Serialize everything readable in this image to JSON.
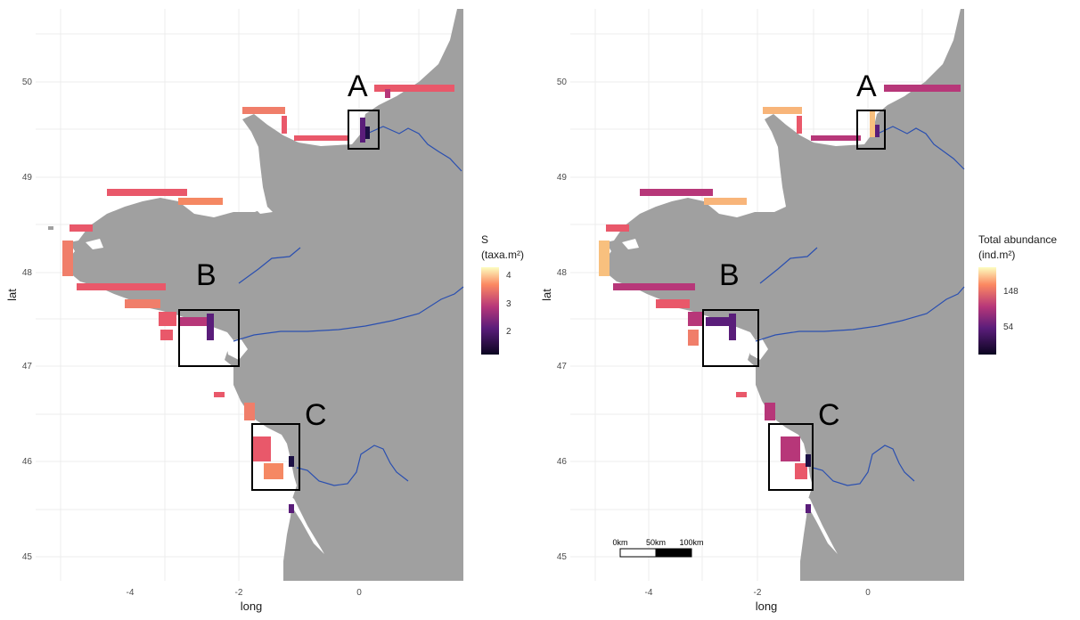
{
  "panels": [
    {
      "id": "species_richness",
      "xlabel": "long",
      "ylabel": "lat",
      "x_ticks": [
        "-4",
        "-2",
        "0"
      ],
      "y_ticks": [
        "45",
        "46",
        "47",
        "48",
        "49",
        "50"
      ],
      "legend": {
        "title_line1": "S",
        "title_line2": "(taxa.m²)",
        "ticks": [
          "4",
          "3",
          "2"
        ]
      },
      "boxes": [
        {
          "label": "A",
          "lon": [
            -0.2,
            0.35
          ],
          "lat": [
            49.3,
            49.7
          ]
        },
        {
          "label": "B",
          "lon": [
            -3.0,
            -2.0
          ],
          "lat": [
            47.0,
            47.6
          ]
        },
        {
          "label": "C",
          "lon": [
            -1.8,
            -1.05
          ],
          "lat": [
            45.7,
            46.4
          ]
        }
      ],
      "colors": {
        "land": "#a0a0a0",
        "river": "#2a4fb0",
        "low": "#0b0420",
        "mid": "#b73779",
        "high": "#fcfdbf"
      }
    },
    {
      "id": "total_abundance",
      "xlabel": "long",
      "ylabel": "lat",
      "x_ticks": [
        "-4",
        "-2",
        "0"
      ],
      "y_ticks": [
        "45",
        "46",
        "47",
        "48",
        "49",
        "50"
      ],
      "legend": {
        "title_line1": "Total abundance",
        "title_line2": " (ind.m²)",
        "ticks": [
          "148",
          "54"
        ]
      },
      "boxes": [
        {
          "label": "A",
          "lon": [
            -0.2,
            0.35
          ],
          "lat": [
            49.3,
            49.7
          ]
        },
        {
          "label": "B",
          "lon": [
            -3.0,
            -2.0
          ],
          "lat": [
            47.0,
            47.6
          ]
        },
        {
          "label": "C",
          "lon": [
            -1.8,
            -1.05
          ],
          "lat": [
            45.7,
            46.4
          ]
        }
      ],
      "scalebar": {
        "labels": [
          "0km",
          "50km",
          "100km"
        ]
      }
    }
  ]
}
